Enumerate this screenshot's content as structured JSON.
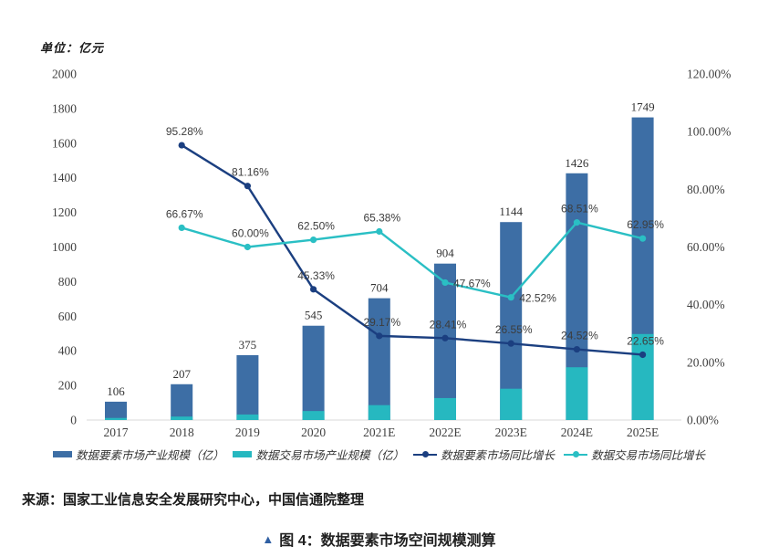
{
  "unit_label": "单位：亿元",
  "source": "来源：国家工业信息安全发展研究中心，中国信通院整理",
  "caption": {
    "marker": "▲",
    "text": "图 4：数据要素市场空间规模测算"
  },
  "colors": {
    "bar_element_market": "#3D6EA5",
    "bar_trade_market": "#26B8C0",
    "line_element_growth": "#1B3F80",
    "line_trade_growth": "#2ABFC4",
    "axis_line": "#d9d9d9",
    "tick_text": "#404040",
    "bar_label_text": "#333333",
    "pct_label_text": "#3d3d3d",
    "caption_marker": "#2F5FA3"
  },
  "chart_data": {
    "type": "bar+line combo",
    "title": "",
    "categories": [
      "2017",
      "2018",
      "2019",
      "2020",
      "2021E",
      "2022E",
      "2023E",
      "2024E",
      "2025E"
    ],
    "left_axis": {
      "label": "亿元",
      "min": 0,
      "max": 2000,
      "step": 200
    },
    "right_axis": {
      "label": "同比增长",
      "min": 0,
      "max": 120,
      "step": 20,
      "format": "percent"
    },
    "grid": false,
    "legend_position": "bottom",
    "series": [
      {
        "name": "数据要素市场产业规模（亿）",
        "type": "bar",
        "axis": "left",
        "color": "#3D6EA5",
        "values": [
          106,
          207,
          375,
          545,
          704,
          904,
          1144,
          1426,
          1749
        ],
        "show_value_labels": true
      },
      {
        "name": "数据交易市场产业规模（亿）",
        "type": "bar",
        "axis": "left",
        "color": "#26B8C0",
        "values": [
          12,
          20,
          32,
          52,
          86,
          127,
          181,
          305,
          497
        ],
        "show_value_labels": false
      },
      {
        "name": "数据要素市场同比增长",
        "type": "line",
        "axis": "right",
        "color": "#1B3F80",
        "values": [
          null,
          95.28,
          81.16,
          45.33,
          29.17,
          28.41,
          26.55,
          24.52,
          22.65
        ],
        "value_labels": [
          null,
          "95.28%",
          "81.16%",
          "45.33%",
          "29.17%",
          "28.41%",
          "26.55%",
          "24.52%",
          "22.65%"
        ],
        "label_anchor": [
          null,
          "above",
          "above",
          "above",
          "above",
          "above",
          "above",
          "above",
          "above"
        ]
      },
      {
        "name": "数据交易市场同比增长",
        "type": "line",
        "axis": "right",
        "color": "#2ABFC4",
        "values": [
          null,
          66.67,
          60.0,
          62.5,
          65.38,
          47.67,
          42.52,
          68.51,
          62.95
        ],
        "value_labels": [
          null,
          "66.67%",
          "60.00%",
          "62.50%",
          "65.38%",
          "47.67%",
          "42.52%",
          "68.51%",
          "62.95%"
        ],
        "label_anchor": [
          null,
          "above",
          "above",
          "above",
          "above",
          "right",
          "right",
          "above",
          "above"
        ]
      }
    ]
  }
}
